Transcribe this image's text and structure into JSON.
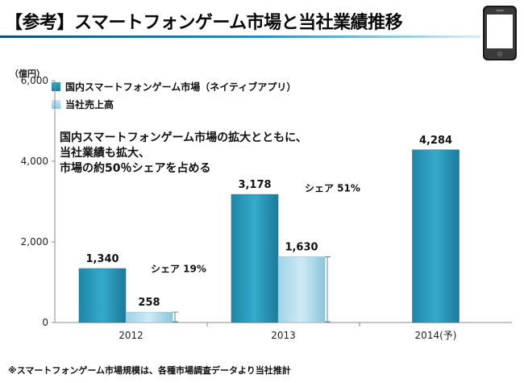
{
  "title": "【参考】スマートフォンゲーム市場と当社業績推移",
  "y_unit": "（億円）",
  "note_lines": [
    "国内スマートフォンゲーム市場の拡大とともに、",
    "当社業績も拡大、",
    "市場の約50％シェアを占める"
  ],
  "footnote": "※スマートフォンゲーム市場規模は、各種市場調査データより当社推計",
  "colors": {
    "market_top": "#2fa3c4",
    "market_bottom": "#1f7f9f",
    "company_top": "#c8e6f2",
    "company_bottom": "#8fc8df"
  },
  "chart_data": {
    "type": "bar",
    "categories": [
      "2012",
      "2013",
      "2014(予)"
    ],
    "ylim": [
      0,
      6000
    ],
    "yticks": [
      0,
      2000,
      4000,
      6000
    ],
    "ytick_labels": [
      "0",
      "2,000",
      "4,000",
      "6,000"
    ],
    "grid": false,
    "legend_position": "top-left",
    "series": [
      {
        "name": "国内スマートフォンゲーム市場（ネイティブアプリ）",
        "values": [
          1340,
          3178,
          4284
        ],
        "labels": [
          "1,340",
          "3,178",
          "4,284"
        ]
      },
      {
        "name": "当社売上高",
        "values": [
          258,
          1630,
          null
        ],
        "labels": [
          "258",
          "1,630",
          ""
        ]
      }
    ],
    "annotations": [
      {
        "category": "2012",
        "text": "シェア 19%"
      },
      {
        "category": "2013",
        "text": "シェア 51%"
      }
    ]
  }
}
